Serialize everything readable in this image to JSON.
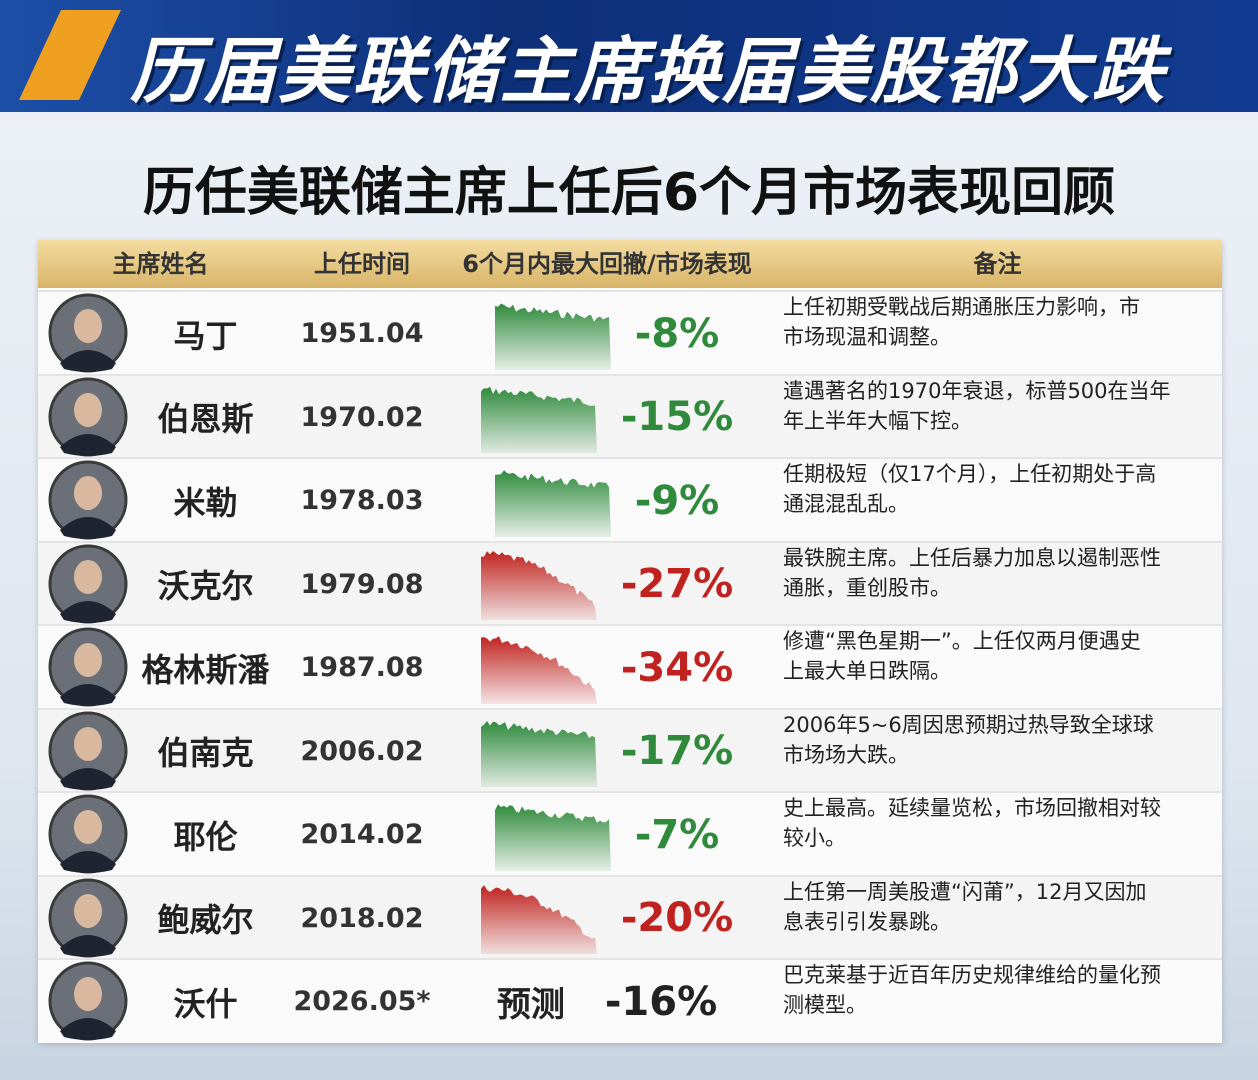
{
  "header": {
    "banner": "历届美联储主席换届美股都大跌",
    "title": "历任美联储主席上任后6个月市场表现回顾"
  },
  "table": {
    "columns": [
      "主席姓名",
      "上任时间",
      "6个月内最大回撤/市场表现",
      "备注"
    ],
    "rows": [
      {
        "name": "马丁",
        "date": "1951.04",
        "drawdown": "-8%",
        "color": "#2f8a3c",
        "note": [
          "上任初期受戰战后期通胀压力影响，市",
          "市场现温和调整。"
        ]
      },
      {
        "name": "伯恩斯",
        "date": "1970.02",
        "drawdown": "-15%",
        "color": "#2f8a3c",
        "note": [
          "遣遇著名的1970年衰退，标普500在当年",
          "年上半年大幅下控。"
        ]
      },
      {
        "name": "米勒",
        "date": "1978.03",
        "drawdown": "-9%",
        "color": "#2f8a3c",
        "note": [
          "任期极短（仅17个月），上任初期处于高",
          "通混混乱乱。"
        ]
      },
      {
        "name": "沃克尔",
        "date": "1979.08",
        "drawdown": "-27%",
        "color": "#c0231f",
        "note": [
          "最铁腕主席。上任后暴力加息以遏制恶性",
          "通胀，重创股市。"
        ]
      },
      {
        "name": "格林斯潘",
        "date": "1987.08",
        "drawdown": "-34%",
        "color": "#c0231f",
        "note": [
          "修遭“黑色星期一”。上任仅两月便遇史",
          "上最大单日跌隔。"
        ]
      },
      {
        "name": "伯南克",
        "date": "2006.02",
        "drawdown": "-17%",
        "color": "#2f8a3c",
        "note": [
          "2006年5~6周因思预期过热导致全球球",
          "市场场大跌。"
        ]
      },
      {
        "name": "耶伦",
        "date": "2014.02",
        "drawdown": "-7%",
        "color": "#2f8a3c",
        "note": [
          "史上最高。延续量览松，市场回撤相对较",
          "较小。"
        ]
      },
      {
        "name": "鲍威尔",
        "date": "2018.02",
        "drawdown": "-20%",
        "color": "#c0231f",
        "note": [
          "上任第一周美股遭“闪莆”，12月又因加",
          "息表引引发暴跳。"
        ]
      },
      {
        "name": "沃什",
        "date": "2026.05*",
        "forecast": "预测",
        "drawdown": "-16%",
        "color": "#222222",
        "note": [
          "巴克莱基于近百年历史规律维给的量化预",
          "测模型。"
        ]
      }
    ]
  }
}
